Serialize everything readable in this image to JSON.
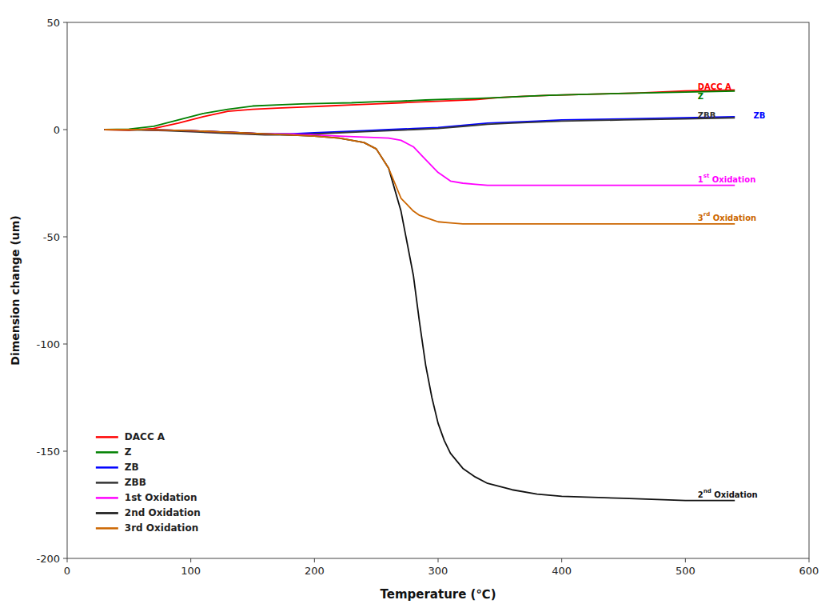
{
  "chart_data": {
    "type": "line",
    "xlabel": "Temperature (℃)",
    "ylabel": "Dimension change (um)",
    "xlim": [
      0,
      600
    ],
    "ylim": [
      -200,
      50
    ],
    "xticks": [
      0,
      100,
      200,
      300,
      400,
      500,
      600
    ],
    "yticks": [
      50,
      0,
      -50,
      -100,
      -150,
      -200
    ],
    "grid": false,
    "legend": "lower left",
    "series": [
      {
        "name": "DACC A",
        "color": "#ff0000",
        "x": [
          30,
          50,
          70,
          90,
          110,
          130,
          150,
          170,
          190,
          210,
          230,
          250,
          270,
          290,
          310,
          330,
          350,
          370,
          390,
          420,
          460,
          500,
          540
        ],
        "values": [
          0,
          -0.3,
          0.5,
          3,
          6,
          8.5,
          9.5,
          10,
          10.5,
          11,
          11.5,
          12,
          12.5,
          13,
          13.5,
          14,
          15,
          15.5,
          16,
          16.5,
          17,
          18,
          18.5
        ]
      },
      {
        "name": "Z",
        "color": "#008000",
        "x": [
          30,
          50,
          70,
          90,
          110,
          130,
          150,
          170,
          190,
          210,
          230,
          250,
          270,
          290,
          310,
          330,
          350,
          370,
          390,
          420,
          460,
          500,
          540
        ],
        "values": [
          0,
          0.2,
          1.5,
          4.5,
          7.5,
          9.5,
          11,
          11.5,
          12,
          12.3,
          12.5,
          13,
          13.3,
          13.8,
          14.2,
          14.5,
          15,
          15.5,
          16,
          16.5,
          17,
          17.5,
          18
        ]
      },
      {
        "name": "ZB",
        "color": "#0000ff",
        "x": [
          30,
          60,
          80,
          100,
          120,
          140,
          160,
          180,
          200,
          220,
          240,
          260,
          280,
          300,
          320,
          340,
          360,
          380,
          400,
          450,
          500,
          540
        ],
        "values": [
          0,
          0,
          -0.2,
          -0.5,
          -1,
          -1.5,
          -2,
          -2,
          -1.5,
          -1,
          -0.5,
          0,
          0.5,
          1,
          2,
          3,
          3.5,
          4,
          4.5,
          5,
          5.5,
          6
        ]
      },
      {
        "name": "ZBB",
        "color": "#333333",
        "x": [
          30,
          60,
          80,
          100,
          120,
          140,
          160,
          180,
          200,
          220,
          240,
          260,
          280,
          300,
          320,
          340,
          360,
          380,
          400,
          450,
          500,
          540
        ],
        "values": [
          0,
          -0.2,
          -0.5,
          -1,
          -1.5,
          -2,
          -2.5,
          -2.5,
          -2,
          -1.5,
          -1,
          -0.5,
          0,
          0.5,
          1.5,
          2.5,
          3,
          3.5,
          4,
          4.5,
          5,
          5.5
        ]
      },
      {
        "name": "1st Oxidation",
        "color": "#ff00ff",
        "x": [
          30,
          60,
          80,
          100,
          120,
          140,
          160,
          180,
          200,
          220,
          240,
          260,
          270,
          280,
          290,
          300,
          310,
          320,
          330,
          340,
          360,
          380,
          400,
          450,
          500,
          540
        ],
        "values": [
          0,
          0,
          -0.2,
          -0.5,
          -1,
          -1.5,
          -2,
          -2,
          -2.5,
          -3,
          -3.5,
          -4,
          -5,
          -8,
          -14,
          -20,
          -24,
          -25,
          -25.5,
          -26,
          -26,
          -26,
          -26,
          -26,
          -26,
          -26
        ]
      },
      {
        "name": "2nd Oxidation",
        "color": "#111111",
        "x": [
          30,
          60,
          80,
          100,
          120,
          140,
          160,
          180,
          200,
          220,
          240,
          250,
          260,
          270,
          280,
          285,
          290,
          295,
          300,
          305,
          310,
          320,
          330,
          340,
          360,
          380,
          400,
          450,
          500,
          540
        ],
        "values": [
          0,
          0,
          -0.2,
          -0.5,
          -1,
          -1.5,
          -2,
          -2.5,
          -3,
          -4,
          -6,
          -9,
          -18,
          -38,
          -68,
          -90,
          -110,
          -125,
          -137,
          -145,
          -151,
          -158,
          -162,
          -165,
          -168,
          -170,
          -171,
          -172,
          -173,
          -173
        ]
      },
      {
        "name": "3rd Oxidation",
        "color": "#cc6600",
        "x": [
          30,
          60,
          80,
          100,
          120,
          140,
          160,
          180,
          200,
          220,
          240,
          250,
          260,
          270,
          280,
          285,
          290,
          295,
          300,
          310,
          320,
          330,
          340,
          360,
          380,
          400,
          450,
          500,
          540
        ],
        "values": [
          0,
          0,
          -0.2,
          -0.5,
          -1,
          -1.5,
          -2,
          -2.5,
          -3,
          -4,
          -6,
          -9,
          -18,
          -32,
          -38,
          -40,
          -41,
          -42,
          -43,
          -43.5,
          -44,
          -44,
          -44,
          -44,
          -44,
          -44,
          -44,
          -44,
          -44
        ]
      }
    ],
    "annotations": [
      {
        "text": "DACC A",
        "x": 510,
        "y": 20,
        "color": "#ff0000"
      },
      {
        "text": "Z",
        "x": 510,
        "y": 15.5,
        "color": "#008000"
      },
      {
        "text": "ZBB",
        "x": 510,
        "y": 6.5,
        "color": "#333333"
      },
      {
        "text": "ZB",
        "x": 555,
        "y": 6.5,
        "color": "#0000ff"
      },
      {
        "text": "1st Oxidation",
        "x": 510,
        "y": -23,
        "color": "#ff00ff"
      },
      {
        "text": "3rd Oxidation",
        "x": 510,
        "y": -41,
        "color": "#cc6600"
      },
      {
        "text": "2nd Oxidation",
        "x": 510,
        "y": -170,
        "color": "#111111"
      }
    ]
  }
}
